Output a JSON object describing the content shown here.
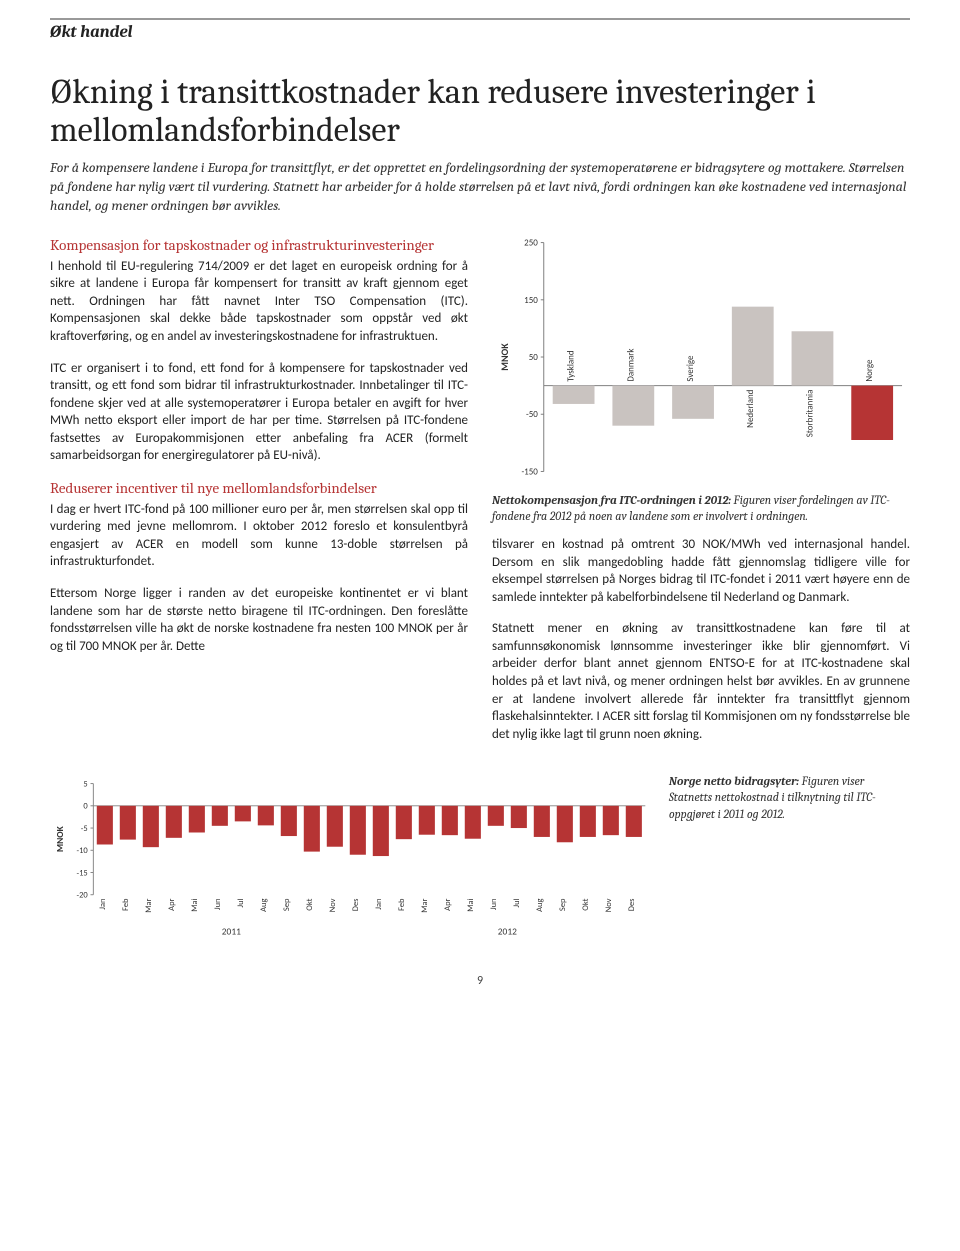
{
  "header": "Økt handel",
  "title": "Økning i transittkostnader kan redusere investeringer i mellomlandsforbindelser",
  "intro": "For å kompensere landene i Europa for transittflyt, er det opprettet en fordelingsordning der systemoperatørene er bidragsytere og mottakere. Størrelsen på fondene har nylig vært til vurdering. Statnett har arbeider for å holde størrelsen på et lavt nivå, fordi ordningen kan øke kostnadene ved internasjonal handel, og mener ordningen bør avvikles.",
  "left": {
    "h1": "Kompensasjon for tapskostnader og infrastrukturinvesteringer",
    "p1": "I henhold til EU-regulering 714/2009 er det laget en europeisk ordning for å sikre at landene i Europa får kompensert for transitt av kraft gjennom eget nett. Ordningen har fått navnet Inter TSO Compensation (ITC). Kompensasjonen skal dekke både tapskostnader som oppstår ved økt kraftoverføring, og en andel av investeringskostnadene for infrastruktuen.",
    "p2": "ITC er organisert i to fond, ett fond for å kompensere for tapskostnader ved transitt, og ett fond som bidrar til infrastrukturkostnader. Innbetalinger til ITC-fondene skjer ved at alle systemoperatører i Europa betaler en avgift for hver MWh netto eksport eller import de har per time. Størrelsen på ITC-fondene fastsettes av Europakommisjonen etter anbefaling fra ACER (formelt samarbeidsorgan for energiregulatorer på EU-nivå).",
    "h2": "Reduserer incentiver til nye mellomlandsforbindelser",
    "p3": "I dag er hvert ITC-fond på 100 millioner euro per år, men størrelsen skal opp til vurdering med jevne mellomrom. I oktober 2012 foreslo et konsulentbyrå engasjert av ACER en modell som kunne 13-doble størrelsen på infrastrukturfondet.",
    "p4": "Ettersom Norge ligger i randen av det europeiske kontinentet er vi blant landene som har de største netto biragene til ITC-ordningen. Den foreslåtte fondsstørrelsen ville ha økt de norske kostnadene fra nesten 100 MNOK per år og til 700 MNOK per år. Dette"
  },
  "right": {
    "chart1_caption_bold": "Nettokompensasjon fra ITC-ordningen i 2012:",
    "chart1_caption": " Figuren viser fordelingen av ITC-fondene fra 2012 på noen av landene som er involvert i ordningen.",
    "p1": "tilsvarer en kostnad på omtrent 30 NOK/MWh ved internasjonal handel. Dersom en slik mangedobling hadde fått gjennomslag tidligere ville for eksempel størrelsen på Norges bidrag til ITC-fondet i 2011 vært høyere enn de samlede inntekter på kabelforbindelsene til Nederland og Danmark.",
    "p2": "Statnett mener en økning av transittkostnadene kan føre til at samfunnsøkonomisk lønnsomme investeringer ikke blir gjennomført. Vi arbeider derfor blant annet gjennom ENTSO-E for at ITC-kostnadene skal holdes på et lavt nivå, og mener ordningen helst bør avvikles. En av grunnene er at landene involvert allerede får inntekter fra transittflyt gjennom flaskehalsinntekter. I ACER sitt forslag til Kommisjonen om ny fondsstørrelse ble det nylig ikke lagt til grunn noen økning."
  },
  "chart1": {
    "type": "bar",
    "ylabel": "MNOK",
    "ylim": [
      -150,
      250
    ],
    "ytick_step": 100,
    "yticks": [
      -150,
      -50,
      50,
      150,
      250
    ],
    "categories": [
      "Tyskland",
      "Danmark",
      "Sverige",
      "Nederland",
      "Storbritannia",
      "Norge"
    ],
    "values": [
      -32,
      -70,
      -58,
      138,
      95,
      -95
    ],
    "bar_colors": [
      "#c9c3c0",
      "#c9c3c0",
      "#c9c3c0",
      "#c9c3c0",
      "#c9c3c0",
      "#b63434"
    ],
    "background_color": "#ffffff",
    "axis_color": "#808080",
    "label_fontsize": 9,
    "ylabel_fontsize": 10,
    "bar_width": 0.7
  },
  "chart2": {
    "type": "bar",
    "ylabel": "MNOK",
    "ylim": [
      -20,
      5
    ],
    "ytick_step": 5,
    "yticks": [
      -20,
      -15,
      -10,
      -5,
      0,
      5
    ],
    "months": [
      "Jan",
      "Feb",
      "Mar",
      "Apr",
      "Mai",
      "Jun",
      "Jul",
      "Aug",
      "Sep",
      "Okt",
      "Nov",
      "Des"
    ],
    "years": [
      "2011",
      "2012"
    ],
    "values_2011": [
      -8.7,
      -7.6,
      -9.3,
      -7.2,
      -6.0,
      -4.5,
      -3.5,
      -4.4,
      -6.8,
      -10.3,
      -9.2,
      -11.0
    ],
    "values_2012": [
      -11.3,
      -7.5,
      -6.5,
      -6.6,
      -7.4,
      -4.5,
      -5.0,
      -7.0,
      -8.2,
      -7.0,
      -6.6,
      -7.0
    ],
    "bar_color": "#b63434",
    "background_color": "#ffffff",
    "axis_color": "#808080",
    "label_fontsize": 9,
    "ylabel_fontsize": 10,
    "bar_width": 0.7,
    "caption_bold": "Norge netto bidragsyter:",
    "caption": " Figuren viser Statnetts nettokostnad i tilknytning til ITC-oppgjøret i 2011 og 2012."
  },
  "page_number": "9"
}
